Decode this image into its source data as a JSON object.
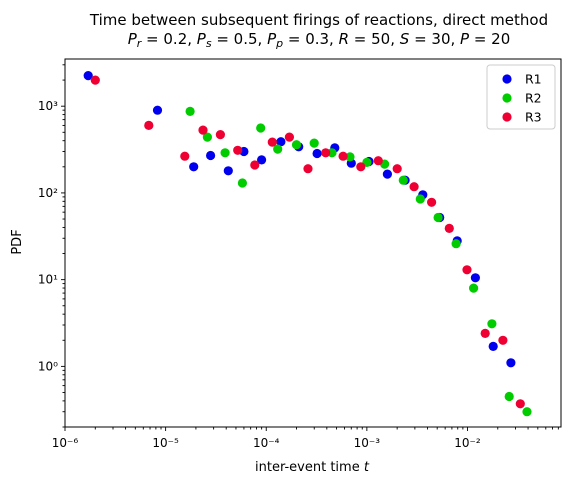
{
  "chart_data": {
    "type": "scatter",
    "title_line1": "Time between subsequent firings of reactions, direct method",
    "title_line2": "Pr = 0.2, Ps = 0.5, Pp = 0.3, R = 50, S = 30, P = 20",
    "xlabel": "inter-event time t",
    "ylabel": "PDF",
    "xscale": "log",
    "yscale": "log",
    "xlim": [
      1e-06,
      0.085
    ],
    "ylim": [
      0.2,
      3500
    ],
    "xticks": [
      {
        "value": 1e-06,
        "label": "10⁻⁶"
      },
      {
        "value": 1e-05,
        "label": "10⁻⁵"
      },
      {
        "value": 0.0001,
        "label": "10⁻⁴"
      },
      {
        "value": 0.001,
        "label": "10⁻³"
      },
      {
        "value": 0.01,
        "label": "10⁻²"
      }
    ],
    "yticks": [
      {
        "value": 1,
        "label": "10⁰"
      },
      {
        "value": 10,
        "label": "10¹"
      },
      {
        "value": 100,
        "label": "10²"
      },
      {
        "value": 1000,
        "label": "10³"
      }
    ],
    "legend_position": "top-right",
    "grid": false,
    "series": [
      {
        "name": "R1",
        "color": "#0000ee",
        "points": [
          [
            1.7e-06,
            2250
          ],
          [
            8.3e-06,
            900
          ],
          [
            1.9e-05,
            200
          ],
          [
            2.8e-05,
            270
          ],
          [
            4.2e-05,
            180
          ],
          [
            6e-05,
            300
          ],
          [
            9e-05,
            240
          ],
          [
            0.00014,
            390
          ],
          [
            0.00021,
            340
          ],
          [
            0.00032,
            285
          ],
          [
            0.00048,
            330
          ],
          [
            0.0007,
            220
          ],
          [
            0.00105,
            230
          ],
          [
            0.0016,
            165
          ],
          [
            0.0024,
            140
          ],
          [
            0.0036,
            95
          ],
          [
            0.0053,
            52
          ],
          [
            0.0079,
            28
          ],
          [
            0.012,
            10.5
          ],
          [
            0.018,
            1.7
          ],
          [
            0.027,
            1.1
          ]
        ]
      },
      {
        "name": "R2",
        "color": "#00cc00",
        "points": [
          [
            1.75e-05,
            870
          ],
          [
            2.6e-05,
            440
          ],
          [
            3.9e-05,
            290
          ],
          [
            5.8e-05,
            130
          ],
          [
            8.8e-05,
            560
          ],
          [
            0.00013,
            320
          ],
          [
            0.0002,
            360
          ],
          [
            0.0003,
            375
          ],
          [
            0.00045,
            290
          ],
          [
            0.00068,
            260
          ],
          [
            0.001,
            225
          ],
          [
            0.0015,
            215
          ],
          [
            0.0023,
            140
          ],
          [
            0.0034,
            85
          ],
          [
            0.0051,
            52
          ],
          [
            0.0077,
            26
          ],
          [
            0.0115,
            8
          ],
          [
            0.0175,
            3.1
          ],
          [
            0.026,
            0.45
          ],
          [
            0.039,
            0.3
          ]
        ]
      },
      {
        "name": "R3",
        "color": "#ee0033",
        "points": [
          [
            2e-06,
            2000
          ],
          [
            6.8e-06,
            600
          ],
          [
            1.55e-05,
            265
          ],
          [
            2.35e-05,
            530
          ],
          [
            3.5e-05,
            470
          ],
          [
            5.2e-05,
            310
          ],
          [
            7.7e-05,
            210
          ],
          [
            0.000115,
            385
          ],
          [
            0.00017,
            440
          ],
          [
            0.00026,
            190
          ],
          [
            0.00039,
            290
          ],
          [
            0.00058,
            265
          ],
          [
            0.00087,
            200
          ],
          [
            0.0013,
            235
          ],
          [
            0.002,
            190
          ],
          [
            0.00295,
            118
          ],
          [
            0.0044,
            78
          ],
          [
            0.0066,
            39
          ],
          [
            0.0099,
            13
          ],
          [
            0.015,
            2.4
          ],
          [
            0.0225,
            2.0
          ],
          [
            0.0335,
            0.37
          ]
        ]
      }
    ]
  }
}
